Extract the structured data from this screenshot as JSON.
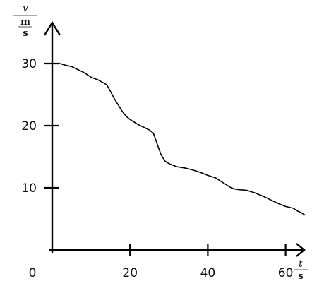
{
  "chart_data": {
    "type": "line",
    "title": "",
    "xlabel": {
      "variable": "t",
      "unit": "s"
    },
    "ylabel": {
      "variable": "v",
      "unit": "m",
      "unit_den": "s"
    },
    "origin_label": "0",
    "xlim": [
      0,
      68
    ],
    "ylim": [
      0,
      35
    ],
    "x_ticks": [
      20,
      40,
      60
    ],
    "y_ticks": [
      10,
      20,
      30
    ],
    "grid": false,
    "legend": "none",
    "series": [
      {
        "color": "#000000",
        "x": [
          0,
          2,
          3,
          5,
          8,
          10,
          12,
          14,
          15,
          16,
          17,
          18,
          19,
          20,
          22,
          24,
          25,
          26,
          27,
          28,
          29,
          30,
          32,
          34,
          36,
          38,
          40,
          42,
          44,
          46,
          47,
          48,
          50,
          52,
          54,
          56,
          58,
          60,
          62,
          63,
          64,
          65
        ],
        "y": [
          30,
          30,
          29.8,
          29.5,
          28.6,
          27.8,
          27.3,
          26.6,
          25.5,
          24.3,
          23.3,
          22.3,
          21.5,
          21,
          20.2,
          19.6,
          19.3,
          18.8,
          17,
          15.3,
          14.3,
          13.9,
          13.4,
          13.2,
          12.9,
          12.5,
          12,
          11.6,
          10.8,
          10,
          9.8,
          9.7,
          9.6,
          9.2,
          8.7,
          8.1,
          7.5,
          7,
          6.7,
          6.3,
          6,
          5.6
        ]
      }
    ]
  }
}
